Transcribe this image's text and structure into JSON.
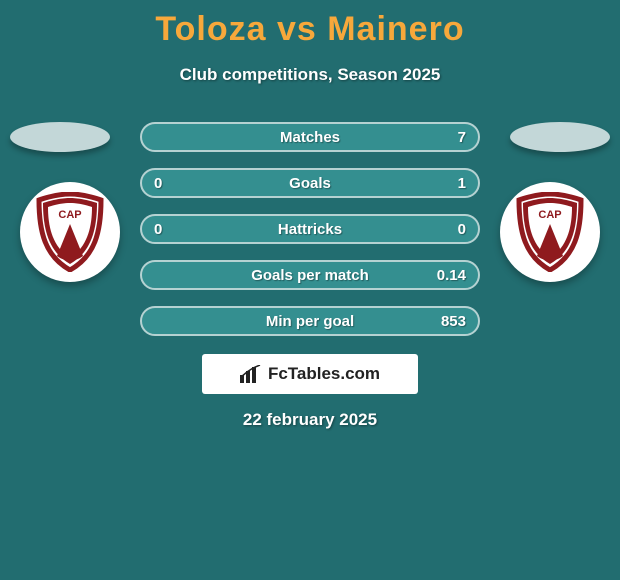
{
  "colors": {
    "background": "#226d70",
    "title": "#f7a83b",
    "text_light": "#ffffff",
    "oval_fill": "#c3d7d8",
    "row_bg": "#348f90",
    "row_border": "#b5d2d2",
    "fct_bg": "#ffffff",
    "fct_text": "#222222",
    "shield_red": "#8f1a1e",
    "shield_white": "#ffffff"
  },
  "typography": {
    "title_size": 34,
    "subtitle_size": 17,
    "row_size": 15,
    "date_size": 17
  },
  "header": {
    "title": "Toloza vs Mainero",
    "subtitle": "Club competitions, Season 2025"
  },
  "rows": [
    {
      "label": "Matches",
      "left": "",
      "right": "7"
    },
    {
      "label": "Goals",
      "left": "0",
      "right": "1"
    },
    {
      "label": "Hattricks",
      "left": "0",
      "right": "0"
    },
    {
      "label": "Goals per match",
      "left": "",
      "right": "0.14"
    },
    {
      "label": "Min per goal",
      "left": "",
      "right": "853"
    }
  ],
  "footer": {
    "brand": "FcTables.com",
    "date": "22 february 2025"
  },
  "badges": {
    "left_label": "CAP",
    "right_label": "CAP"
  }
}
